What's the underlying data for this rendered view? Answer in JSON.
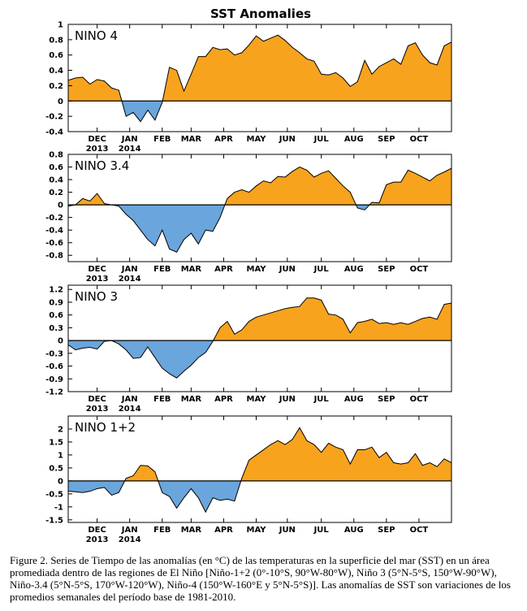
{
  "chart_data": {
    "title": "SST Anomalies",
    "type": "area",
    "colors": {
      "positive": "#f7a31e",
      "negative": "#6aa5dc",
      "line": "#000000",
      "zero": "#000000"
    },
    "x_ticks": [
      {
        "week": 4,
        "label": "DEC",
        "label2": "2013"
      },
      {
        "week": 8.5,
        "label": "JAN",
        "label2": "2014"
      },
      {
        "week": 13,
        "label": "FEB",
        "label2": ""
      },
      {
        "week": 17,
        "label": "MAR",
        "label2": ""
      },
      {
        "week": 21.5,
        "label": "APR",
        "label2": ""
      },
      {
        "week": 26,
        "label": "MAY",
        "label2": ""
      },
      {
        "week": 30.3,
        "label": "JUN",
        "label2": ""
      },
      {
        "week": 35,
        "label": "JUL",
        "label2": ""
      },
      {
        "week": 39.5,
        "label": "AUG",
        "label2": ""
      },
      {
        "week": 44,
        "label": "SEP",
        "label2": ""
      },
      {
        "week": 48.5,
        "label": "OCT",
        "label2": ""
      }
    ],
    "x_range": [
      0,
      53
    ],
    "panels": [
      {
        "name": "NINO 4",
        "ylim": [
          -0.4,
          1
        ],
        "yticks": [
          -0.4,
          -0.2,
          0,
          0.2,
          0.4,
          0.6,
          0.8,
          1
        ],
        "ytick_labels": [
          "-0.4",
          "-0.2",
          "0",
          "0.2",
          "0.4",
          "0.6",
          "0.8",
          "1"
        ],
        "values": [
          0.27,
          0.3,
          0.31,
          0.22,
          0.28,
          0.26,
          0.17,
          0.14,
          -0.2,
          -0.15,
          -0.27,
          -0.12,
          -0.25,
          -0.02,
          0.44,
          0.4,
          0.13,
          0.35,
          0.58,
          0.58,
          0.7,
          0.67,
          0.68,
          0.6,
          0.63,
          0.73,
          0.85,
          0.78,
          0.82,
          0.86,
          0.79,
          0.7,
          0.63,
          0.55,
          0.52,
          0.35,
          0.34,
          0.37,
          0.3,
          0.19,
          0.25,
          0.53,
          0.35,
          0.45,
          0.5,
          0.55,
          0.48,
          0.72,
          0.76,
          0.6,
          0.5,
          0.47,
          0.72,
          0.77
        ]
      },
      {
        "name": "NINO 3.4",
        "ylim": [
          -0.9,
          0.8
        ],
        "yticks": [
          -0.8,
          -0.6,
          -0.4,
          -0.2,
          0,
          0.2,
          0.4,
          0.6,
          0.8
        ],
        "ytick_labels": [
          "-0.8",
          "-0.6",
          "-0.4",
          "-0.2",
          "0",
          "0.2",
          "0.4",
          "0.6",
          "0.8"
        ],
        "values": [
          -0.02,
          0.0,
          0.1,
          0.06,
          0.18,
          0.02,
          0.0,
          -0.02,
          -0.15,
          -0.25,
          -0.4,
          -0.55,
          -0.65,
          -0.4,
          -0.7,
          -0.75,
          -0.55,
          -0.45,
          -0.62,
          -0.4,
          -0.42,
          -0.2,
          0.1,
          0.2,
          0.24,
          0.2,
          0.3,
          0.38,
          0.35,
          0.45,
          0.44,
          0.53,
          0.6,
          0.55,
          0.44,
          0.5,
          0.54,
          0.42,
          0.3,
          0.2,
          -0.05,
          -0.08,
          0.04,
          0.03,
          0.32,
          0.36,
          0.36,
          0.55,
          0.5,
          0.44,
          0.38,
          0.47,
          0.52,
          0.58
        ]
      },
      {
        "name": "NINO 3",
        "ylim": [
          -1.2,
          1.3
        ],
        "yticks": [
          -1.2,
          -0.9,
          -0.6,
          -0.3,
          0,
          0.3,
          0.6,
          0.9,
          1.2
        ],
        "ytick_labels": [
          "-1.2",
          "-0.9",
          "-0.6",
          "-0.3",
          "0",
          "0.3",
          "0.6",
          "0.9",
          "1.2"
        ],
        "values": [
          -0.1,
          -0.22,
          -0.18,
          -0.16,
          -0.2,
          -0.02,
          0.0,
          -0.08,
          -0.22,
          -0.42,
          -0.4,
          -0.15,
          -0.4,
          -0.65,
          -0.78,
          -0.88,
          -0.72,
          -0.58,
          -0.4,
          -0.28,
          -0.02,
          0.3,
          0.45,
          0.15,
          0.25,
          0.45,
          0.55,
          0.6,
          0.65,
          0.7,
          0.75,
          0.78,
          0.8,
          1.0,
          1.0,
          0.95,
          0.62,
          0.6,
          0.5,
          0.18,
          0.42,
          0.45,
          0.5,
          0.4,
          0.42,
          0.38,
          0.42,
          0.38,
          0.45,
          0.52,
          0.55,
          0.5,
          0.85,
          0.88
        ]
      },
      {
        "name": "NINO 1+2",
        "ylim": [
          -1.6,
          2.5
        ],
        "yticks": [
          -1.5,
          -1,
          -0.5,
          0,
          0.5,
          1,
          1.5,
          2
        ],
        "ytick_labels": [
          "-1.5",
          "-1",
          "-0.5",
          "0",
          "0.5",
          "1",
          "1.5",
          "2"
        ],
        "values": [
          -0.4,
          -0.42,
          -0.45,
          -0.4,
          -0.3,
          -0.25,
          -0.55,
          -0.45,
          0.1,
          0.2,
          0.6,
          0.58,
          0.35,
          -0.45,
          -0.6,
          -1.05,
          -0.65,
          -0.3,
          -0.65,
          -1.2,
          -0.65,
          -0.75,
          -0.7,
          -0.78,
          0.1,
          0.8,
          1.0,
          1.2,
          1.4,
          1.55,
          1.4,
          1.6,
          2.05,
          1.55,
          1.4,
          1.1,
          1.45,
          1.3,
          1.2,
          0.65,
          1.2,
          1.2,
          1.3,
          0.9,
          1.1,
          0.7,
          0.65,
          0.7,
          1.05,
          0.6,
          0.7,
          0.55,
          0.85,
          0.7
        ]
      }
    ]
  },
  "caption": "Figure 2. Series de Tiempo de las anomalías (en °C) de las temperaturas en la superficie del mar (SST) en un área promediada dentro de las regiones de El Niño [Niño-1+2 (0°-10°S, 90°W-80°W), Niño 3 (5°N-5°S, 150°W-90°W), Niño-3.4 (5°N-5°S, 170°W-120°W), Niño-4 (150°W-160°E y 5°N-5°S)]. Las anomalías de SST son variaciones de los promedios semanales del período base de 1981-2010."
}
